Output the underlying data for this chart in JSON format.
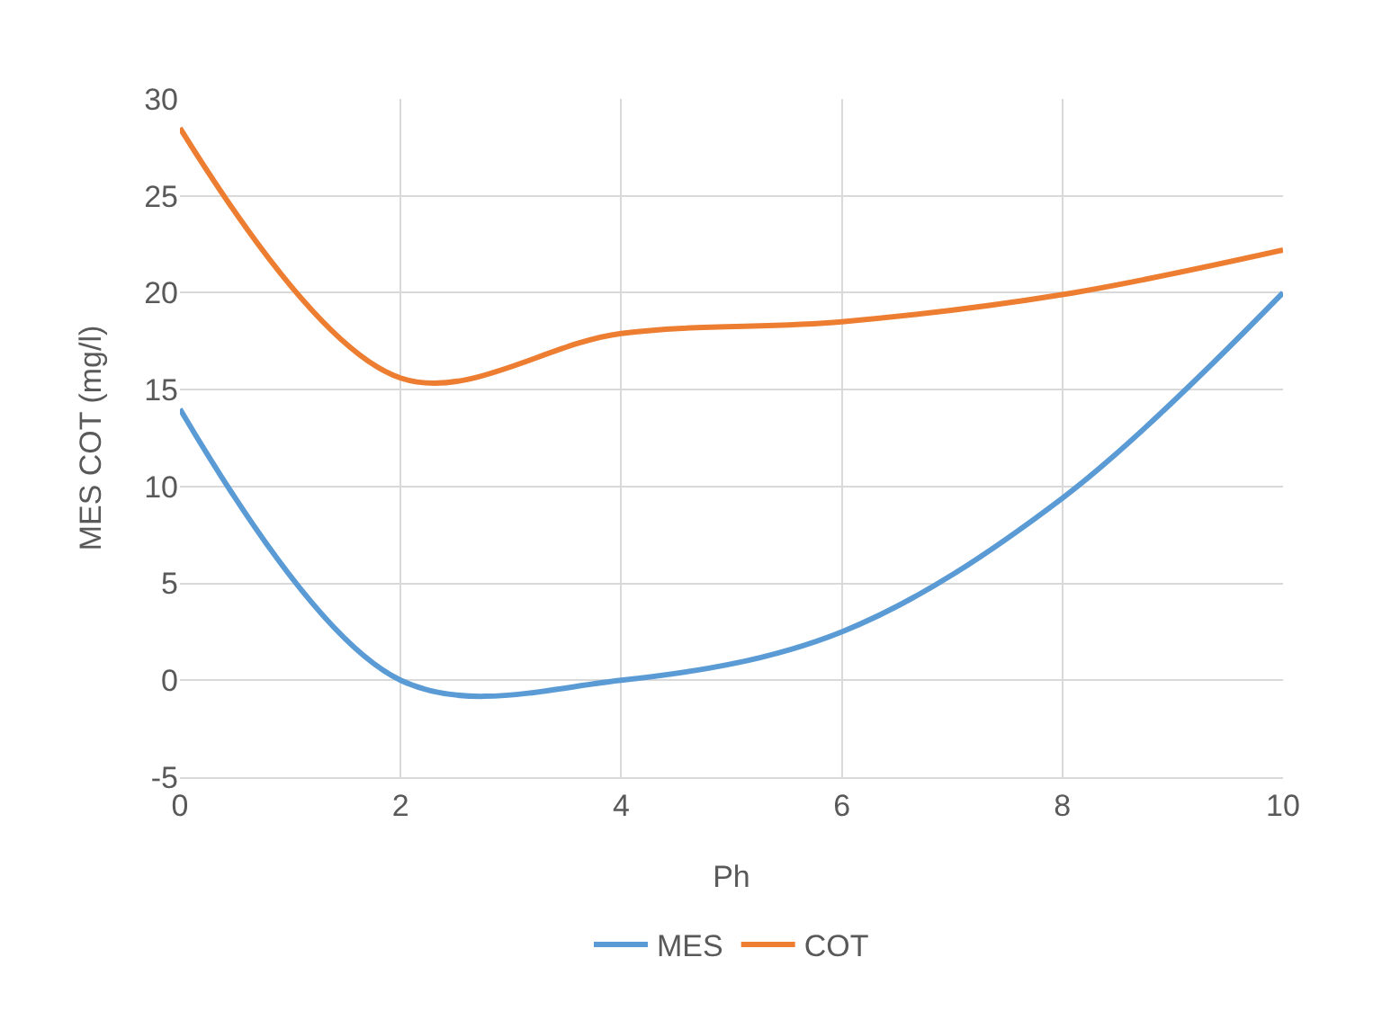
{
  "chart_data": {
    "type": "line",
    "xlabel": "Ph",
    "ylabel": "MES COT (mg/l)",
    "x": [
      0,
      2,
      4,
      6,
      8,
      10
    ],
    "series": [
      {
        "name": "MES",
        "color": "#5b9bd5",
        "values": [
          14,
          0,
          0,
          2.5,
          9.4,
          20
        ]
      },
      {
        "name": "COT",
        "color": "#ed7d31",
        "values": [
          28.5,
          15.6,
          17.9,
          18.5,
          19.9,
          22.2
        ]
      }
    ],
    "xlim": [
      0,
      10
    ],
    "xticks": [
      0,
      2,
      4,
      6,
      8,
      10
    ],
    "ylim": [
      -5,
      30
    ],
    "yticks": [
      -5,
      0,
      5,
      10,
      15,
      20,
      25,
      30
    ],
    "grid": true,
    "legend": "bottom",
    "marker": "none",
    "line_style": "solid"
  }
}
